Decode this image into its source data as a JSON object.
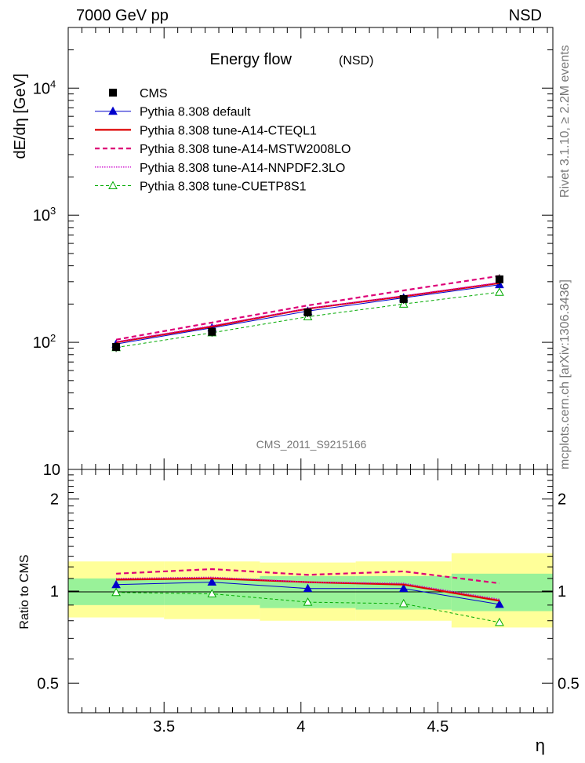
{
  "header": {
    "left": "7000 GeV pp",
    "right": "NSD"
  },
  "side_labels": {
    "rivet": "Rivet 3.1.10, ≥ 2.2M events",
    "mcplots": "mcplots.cern.ch [arXiv:1306.3436]"
  },
  "watermark": "CMS_2011_S9215166",
  "colors": {
    "cms": "#000000",
    "default": "#0000cc",
    "cteql1": "#dd0000",
    "mstw": "#dd0077",
    "nnpdf": "#cc00cc",
    "cuetp8s1": "#00aa00",
    "band_inner": "#99f299",
    "band_outer": "#ffff99"
  },
  "chart_data": [
    {
      "type": "line",
      "title": "Energy flow",
      "title_suffix": "(NSD)",
      "ylabel": "dE/dη [GeV]",
      "yscale": "log",
      "ylim": [
        10,
        30000
      ],
      "xlim": [
        3.15,
        4.92
      ],
      "x_ticks": [
        "3.5",
        "4",
        "4.5"
      ],
      "y_ticks": [
        {
          "base": "10",
          "exp": ""
        },
        {
          "base": "10",
          "exp": "2"
        },
        {
          "base": "10",
          "exp": "3"
        },
        {
          "base": "10",
          "exp": "4"
        }
      ],
      "x": [
        3.325,
        3.675,
        4.025,
        4.375,
        4.725
      ],
      "legend_position": "top-left",
      "series": [
        {
          "name": "CMS",
          "style": "data",
          "values": [
            92,
            121,
            172,
            219,
            313
          ],
          "errors": [
            8,
            10,
            14,
            18,
            30
          ]
        },
        {
          "name": "Pythia 8.308 default",
          "style": "line-triangle",
          "values": [
            97,
            130,
            176,
            224,
            284
          ]
        },
        {
          "name": "Pythia 8.308 tune-A14-CTEQL1",
          "style": "solid",
          "values": [
            100,
            133,
            184,
            230,
            292
          ]
        },
        {
          "name": "Pythia 8.308 tune-A14-MSTW2008LO",
          "style": "dashed",
          "values": [
            105,
            143,
            195,
            256,
            333
          ]
        },
        {
          "name": "Pythia 8.308 tune-A14-NNPDF2.3LO",
          "style": "dotted",
          "values": [
            101,
            135,
            185,
            232,
            295
          ]
        },
        {
          "name": "Pythia 8.308 tune-CUETP8S1",
          "style": "dashed-open-triangle",
          "values": [
            91,
            119,
            159,
            200,
            248
          ]
        }
      ]
    },
    {
      "type": "line",
      "ylabel": "Ratio to CMS",
      "xlabel": "η",
      "ylim": [
        0.4,
        2.5
      ],
      "xlim": [
        3.15,
        4.92
      ],
      "x_ticks": [
        "3.5",
        "4",
        "4.5"
      ],
      "y_ticks": [
        "0.5",
        "1",
        "2"
      ],
      "x": [
        3.325,
        3.675,
        4.025,
        4.375,
        4.725
      ],
      "bands": {
        "edges": [
          3.15,
          3.5,
          3.85,
          4.2,
          4.55,
          4.92
        ],
        "inner": [
          [
            0.9,
            1.1
          ],
          [
            0.9,
            1.1
          ],
          [
            0.88,
            1.12
          ],
          [
            0.87,
            1.12
          ],
          [
            0.86,
            1.14
          ]
        ],
        "outer": [
          [
            0.82,
            1.25
          ],
          [
            0.81,
            1.25
          ],
          [
            0.8,
            1.24
          ],
          [
            0.8,
            1.25
          ],
          [
            0.76,
            1.33
          ]
        ]
      },
      "series": [
        {
          "name": "Pythia 8.308 default",
          "values": [
            1.05,
            1.07,
            1.02,
            1.02,
            0.905
          ]
        },
        {
          "name": "Pythia 8.308 tune-A14-CTEQL1",
          "values": [
            1.09,
            1.1,
            1.07,
            1.05,
            0.93
          ]
        },
        {
          "name": "Pythia 8.308 tune-A14-MSTW2008LO",
          "values": [
            1.14,
            1.18,
            1.13,
            1.16,
            1.06
          ]
        },
        {
          "name": "Pythia 8.308 tune-A14-NNPDF2.3LO",
          "values": [
            1.1,
            1.11,
            1.07,
            1.06,
            0.94
          ]
        },
        {
          "name": "Pythia 8.308 tune-CUETP8S1",
          "values": [
            0.99,
            0.98,
            0.92,
            0.91,
            0.79
          ]
        }
      ]
    }
  ]
}
